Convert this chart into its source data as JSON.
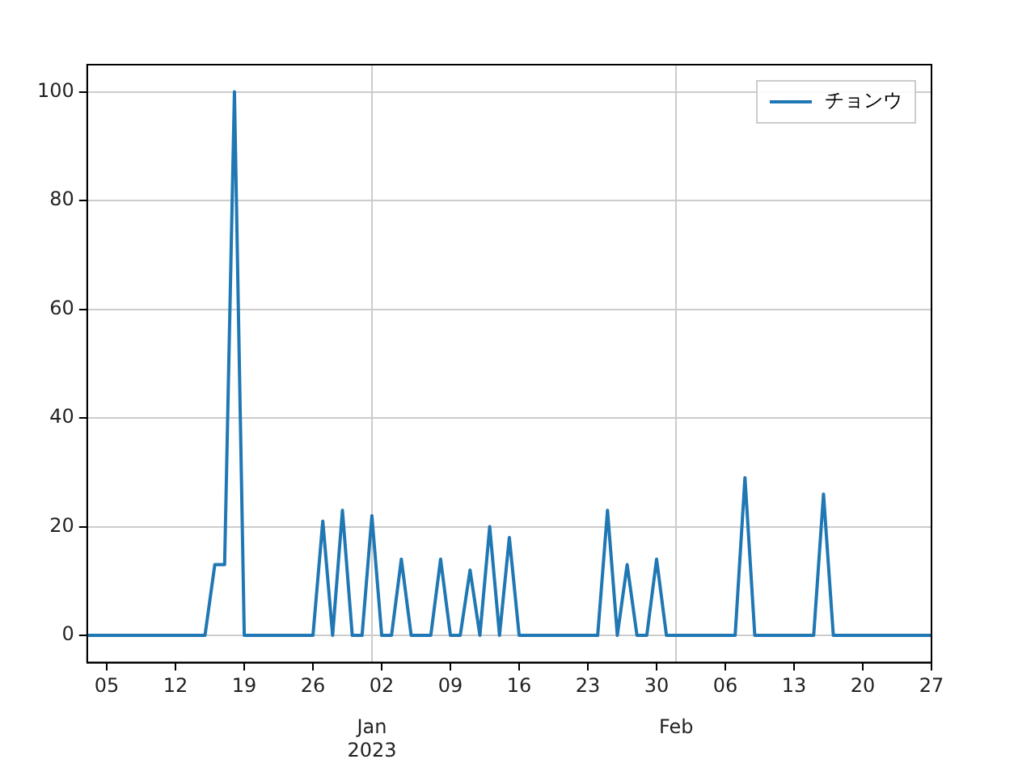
{
  "chart_data": {
    "type": "line",
    "x": [
      "2022-12-03",
      "2022-12-04",
      "2022-12-05",
      "2022-12-06",
      "2022-12-07",
      "2022-12-08",
      "2022-12-09",
      "2022-12-10",
      "2022-12-11",
      "2022-12-12",
      "2022-12-13",
      "2022-12-14",
      "2022-12-15",
      "2022-12-16",
      "2022-12-17",
      "2022-12-18",
      "2022-12-19",
      "2022-12-20",
      "2022-12-21",
      "2022-12-22",
      "2022-12-23",
      "2022-12-24",
      "2022-12-25",
      "2022-12-26",
      "2022-12-27",
      "2022-12-28",
      "2022-12-29",
      "2022-12-30",
      "2022-12-31",
      "2023-01-01",
      "2023-01-02",
      "2023-01-03",
      "2023-01-04",
      "2023-01-05",
      "2023-01-06",
      "2023-01-07",
      "2023-01-08",
      "2023-01-09",
      "2023-01-10",
      "2023-01-11",
      "2023-01-12",
      "2023-01-13",
      "2023-01-14",
      "2023-01-15",
      "2023-01-16",
      "2023-01-17",
      "2023-01-18",
      "2023-01-19",
      "2023-01-20",
      "2023-01-21",
      "2023-01-22",
      "2023-01-23",
      "2023-01-24",
      "2023-01-25",
      "2023-01-26",
      "2023-01-27",
      "2023-01-28",
      "2023-01-29",
      "2023-01-30",
      "2023-01-31",
      "2023-02-01",
      "2023-02-02",
      "2023-02-03",
      "2023-02-04",
      "2023-02-05",
      "2023-02-06",
      "2023-02-07",
      "2023-02-08",
      "2023-02-09",
      "2023-02-10",
      "2023-02-11",
      "2023-02-12",
      "2023-02-13",
      "2023-02-14",
      "2023-02-15",
      "2023-02-16",
      "2023-02-17",
      "2023-02-18",
      "2023-02-19",
      "2023-02-20",
      "2023-02-21",
      "2023-02-22",
      "2023-02-23",
      "2023-02-24",
      "2023-02-25",
      "2023-02-26",
      "2023-02-27"
    ],
    "series": [
      {
        "name": "チョンウ",
        "color": "#1f77b4",
        "values": [
          0,
          0,
          0,
          0,
          0,
          0,
          0,
          0,
          0,
          0,
          0,
          0,
          0,
          13,
          13,
          100,
          0,
          0,
          0,
          0,
          0,
          0,
          0,
          0,
          21,
          0,
          23,
          0,
          0,
          22,
          0,
          0,
          14,
          0,
          0,
          0,
          14,
          0,
          0,
          12,
          0,
          20,
          0,
          18,
          0,
          0,
          0,
          0,
          0,
          0,
          0,
          0,
          0,
          23,
          0,
          13,
          0,
          0,
          14,
          0,
          0,
          0,
          0,
          0,
          0,
          0,
          0,
          29,
          0,
          0,
          0,
          0,
          0,
          0,
          0,
          26,
          0,
          0,
          0,
          0,
          0,
          0,
          0,
          0,
          0,
          0,
          0
        ]
      }
    ],
    "xlim": [
      "2022-12-03",
      "2023-02-27"
    ],
    "xticks": [
      {
        "value": "2022-12-05",
        "label": "05"
      },
      {
        "value": "2022-12-12",
        "label": "12"
      },
      {
        "value": "2022-12-19",
        "label": "19"
      },
      {
        "value": "2022-12-26",
        "label": "26"
      },
      {
        "value": "2023-01-02",
        "label": "02"
      },
      {
        "value": "2023-01-09",
        "label": "09"
      },
      {
        "value": "2023-01-16",
        "label": "16"
      },
      {
        "value": "2023-01-23",
        "label": "23"
      },
      {
        "value": "2023-01-30",
        "label": "30"
      },
      {
        "value": "2023-02-06",
        "label": "06"
      },
      {
        "value": "2023-02-13",
        "label": "13"
      },
      {
        "value": "2023-02-20",
        "label": "20"
      },
      {
        "value": "2023-02-27",
        "label": "27"
      }
    ],
    "x2lim": [
      "2022-12-03",
      "2023-02-27"
    ],
    "x2ticks": [
      {
        "value": "2023-01-01",
        "label": "Jan\n2023"
      },
      {
        "value": "2023-02-01",
        "label": "Feb"
      }
    ],
    "ylim": [
      -5,
      105
    ],
    "yticks": [
      0,
      20,
      40,
      60,
      80,
      100
    ],
    "grid": true,
    "legend": "top right",
    "marker": "none",
    "line_style": "solid"
  }
}
